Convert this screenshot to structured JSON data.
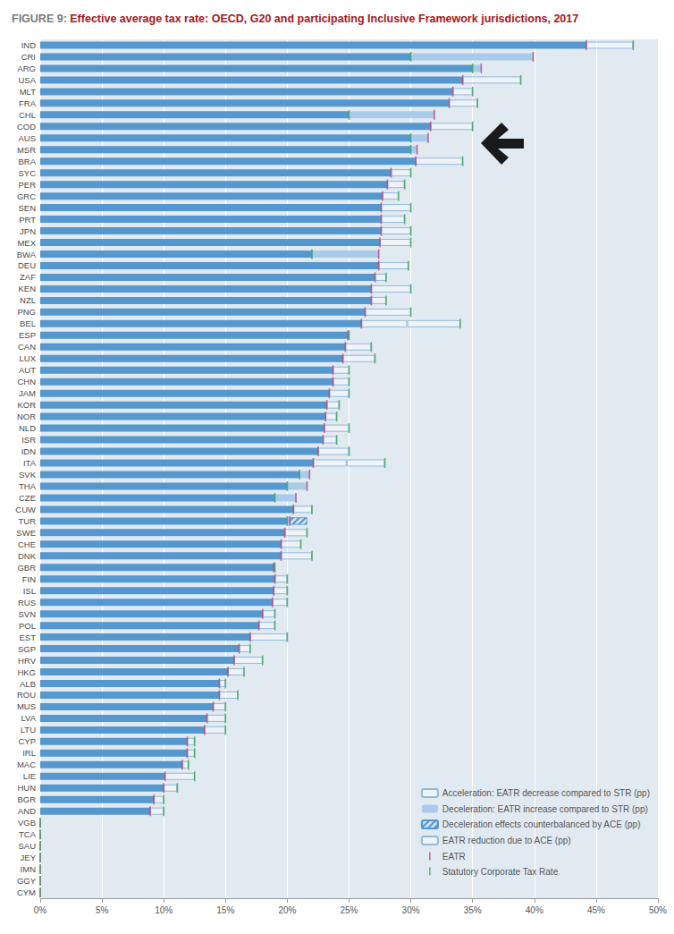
{
  "chart_data": {
    "type": "bar",
    "title": "FIGURE 9: Effective average tax rate: OECD, G20 and participating Inclusive Framework jurisdictions, 2017",
    "orientation": "horizontal",
    "stacked": true,
    "grid": true,
    "legend": "lower right",
    "categories": [
      "IND",
      "CRI",
      "ARG",
      "USA",
      "MLT",
      "FRA",
      "CHL",
      "COD",
      "AUS",
      "MSR",
      "BRA",
      "SYC",
      "PER",
      "GRC",
      "SEN",
      "PRT",
      "JPN",
      "MEX",
      "BWA",
      "DEU",
      "ZAF",
      "KEN",
      "NZL",
      "PNG",
      "BEL",
      "ESP",
      "CAN",
      "LUX",
      "AUT",
      "CHN",
      "JAM",
      "KOR",
      "NOR",
      "NLD",
      "ISR",
      "IDN",
      "ITA",
      "SVK",
      "THA",
      "CZE",
      "CUW",
      "TUR",
      "SWE",
      "CHE",
      "DNK",
      "GBR",
      "FIN",
      "ISL",
      "RUS",
      "SVN",
      "POL",
      "EST",
      "SGP",
      "HRV",
      "HKG",
      "ALB",
      "ROU",
      "MUS",
      "LVA",
      "LTU",
      "CYP",
      "IRL",
      "MAC",
      "LIE",
      "HUN",
      "BGR",
      "AND",
      "VGB",
      "TCA",
      "SAU",
      "JEY",
      "IMN",
      "GGY",
      "CYM"
    ],
    "xlim": [
      0,
      50
    ],
    "xticks": [
      {
        "value": 0,
        "label": "0%"
      },
      {
        "value": 5,
        "label": "5%"
      },
      {
        "value": 10,
        "label": "10%"
      },
      {
        "value": 15,
        "label": "15%"
      },
      {
        "value": 20,
        "label": "20%"
      },
      {
        "value": 25,
        "label": "25%"
      },
      {
        "value": 30,
        "label": "30%"
      },
      {
        "value": 35,
        "label": "35%"
      },
      {
        "value": 40,
        "label": "40%"
      },
      {
        "value": 45,
        "label": "45%"
      },
      {
        "value": 50,
        "label": "50%"
      }
    ],
    "series": [
      {
        "type": "bar",
        "color": "#5597cf",
        "values": [
          44.2,
          30.0,
          35.0,
          34.2,
          33.4,
          33.1,
          25.0,
          31.6,
          30.0,
          30.0,
          30.4,
          28.4,
          28.1,
          27.7,
          27.6,
          27.6,
          27.6,
          27.5,
          22.0,
          27.4,
          27.1,
          26.8,
          26.8,
          26.3,
          26.0,
          24.9,
          24.7,
          24.5,
          23.7,
          23.7,
          23.4,
          23.2,
          23.1,
          23.0,
          22.9,
          22.5,
          22.1,
          21.0,
          20.0,
          19.0,
          20.5,
          20.0,
          19.8,
          19.5,
          19.5,
          18.9,
          19.0,
          18.9,
          18.8,
          18.0,
          17.7,
          17.0,
          16.1,
          15.7,
          15.2,
          14.5,
          14.5,
          14.0,
          13.5,
          13.3,
          11.9,
          11.9,
          11.5,
          10.1,
          10.0,
          9.2,
          8.9,
          0,
          0,
          0,
          0,
          0,
          0,
          0
        ]
      },
      {
        "name": "Acceleration: EATR decrease compared to STR (pp)",
        "type": "bar",
        "color": "#8fb9dd",
        "values": [
          3.8,
          null,
          null,
          4.7,
          1.6,
          2.3,
          null,
          3.4,
          null,
          null,
          3.8,
          1.6,
          1.4,
          1.3,
          2.4,
          1.9,
          2.4,
          2.5,
          null,
          2.4,
          0.9,
          3.2,
          1.2,
          3.7,
          3.7,
          0.1,
          2.1,
          2.6,
          1.3,
          1.3,
          1.6,
          1.0,
          0.9,
          2.0,
          1.1,
          2.5,
          2.7,
          null,
          null,
          null,
          1.5,
          null,
          1.8,
          1.6,
          2.5,
          0.1,
          1.0,
          1.1,
          1.2,
          1.0,
          1.3,
          3.0,
          0.9,
          2.3,
          1.3,
          0.5,
          1.5,
          1.0,
          1.5,
          1.7,
          0.6,
          0.6,
          0.5,
          2.4,
          1.1,
          0.8,
          1.1,
          null,
          null,
          null,
          null,
          null,
          null,
          null
        ]
      },
      {
        "name": "Deceleration: EATR increase compared to STR (pp)",
        "type": "bar",
        "color": "#a9cbe9",
        "values": [
          null,
          9.9,
          0.7,
          null,
          null,
          null,
          6.9,
          null,
          1.4,
          0.5,
          null,
          null,
          null,
          null,
          null,
          null,
          null,
          null,
          5.4,
          null,
          null,
          null,
          null,
          null,
          null,
          null,
          null,
          null,
          null,
          null,
          null,
          null,
          null,
          null,
          null,
          null,
          null,
          0.8,
          1.6,
          1.7,
          null,
          0.2,
          null,
          null,
          null,
          null,
          null,
          null,
          null,
          null,
          null,
          null,
          null,
          null,
          null,
          null,
          null,
          null,
          null,
          null,
          null,
          null,
          null,
          null,
          null,
          null,
          null,
          null,
          null,
          null,
          null,
          null,
          null,
          null
        ]
      },
      {
        "name": "Deceleration effects counterbalanced by ACE (pp)",
        "type": "bar",
        "color": "#5597cf",
        "values": [
          null,
          null,
          null,
          null,
          null,
          null,
          null,
          null,
          null,
          null,
          null,
          null,
          null,
          null,
          null,
          null,
          null,
          null,
          null,
          null,
          null,
          null,
          null,
          null,
          null,
          null,
          null,
          null,
          null,
          null,
          null,
          null,
          null,
          null,
          null,
          null,
          null,
          null,
          null,
          null,
          null,
          1.4,
          null,
          null,
          null,
          null,
          null,
          null,
          null,
          null,
          null,
          null,
          null,
          null,
          null,
          null,
          null,
          null,
          null,
          null,
          null,
          null,
          null,
          null,
          null,
          null,
          null,
          null,
          null,
          null,
          null,
          null,
          null,
          null
        ]
      },
      {
        "name": "EATR reduction due to ACE (pp)",
        "type": "bar",
        "color": "#8fb9dd",
        "values": [
          null,
          null,
          null,
          null,
          null,
          null,
          null,
          null,
          null,
          null,
          null,
          null,
          null,
          null,
          null,
          null,
          null,
          null,
          null,
          null,
          null,
          null,
          null,
          null,
          4.3,
          null,
          null,
          null,
          null,
          null,
          null,
          null,
          null,
          null,
          null,
          null,
          3.1,
          null,
          null,
          null,
          null,
          null,
          null,
          null,
          null,
          null,
          null,
          null,
          null,
          null,
          null,
          null,
          null,
          null,
          null,
          null,
          null,
          null,
          null,
          null,
          null,
          null,
          null,
          null,
          null,
          null,
          null,
          null,
          null,
          null,
          null,
          null,
          null,
          null
        ]
      },
      {
        "name": "EATR",
        "type": "scatter",
        "color": "#b4457a",
        "values": [
          44.2,
          39.9,
          35.7,
          34.2,
          33.4,
          33.1,
          31.9,
          31.6,
          31.4,
          30.5,
          30.4,
          28.4,
          28.1,
          27.7,
          27.6,
          27.6,
          27.6,
          27.5,
          27.4,
          27.4,
          27.1,
          26.8,
          26.8,
          26.3,
          26.0,
          24.9,
          24.7,
          24.5,
          23.7,
          23.7,
          23.4,
          23.2,
          23.1,
          23.0,
          22.9,
          22.5,
          22.1,
          21.8,
          21.6,
          20.7,
          20.5,
          20.2,
          19.8,
          19.5,
          19.5,
          18.9,
          19.0,
          18.9,
          18.8,
          18.0,
          17.7,
          17.0,
          16.1,
          15.7,
          15.2,
          14.5,
          14.5,
          14.0,
          13.5,
          13.3,
          11.9,
          11.9,
          11.5,
          10.1,
          10.0,
          9.2,
          8.9,
          0,
          0,
          0,
          0,
          0,
          0,
          0
        ]
      },
      {
        "name": "Statutory Corporate Tax Rate",
        "type": "scatter",
        "color": "#3aa35a",
        "values": [
          48.0,
          30.0,
          35.0,
          38.9,
          35.0,
          35.4,
          25.0,
          35.0,
          30.0,
          30.0,
          34.2,
          30.0,
          29.5,
          29.0,
          30.0,
          29.5,
          30.0,
          30.0,
          22.0,
          29.8,
          28.0,
          30.0,
          28.0,
          30.0,
          34.0,
          25.0,
          26.8,
          27.1,
          25.0,
          25.0,
          25.0,
          24.2,
          24.0,
          25.0,
          24.0,
          25.0,
          27.9,
          21.0,
          20.0,
          19.0,
          22.0,
          20.0,
          21.6,
          21.1,
          22.0,
          19.0,
          20.0,
          20.0,
          20.0,
          19.0,
          19.0,
          20.0,
          17.0,
          18.0,
          16.5,
          15.0,
          16.0,
          15.0,
          15.0,
          15.0,
          12.5,
          12.5,
          12.0,
          12.5,
          11.1,
          10.0,
          10.0,
          0,
          0,
          0,
          0,
          0,
          0,
          0
        ]
      }
    ]
  }
}
